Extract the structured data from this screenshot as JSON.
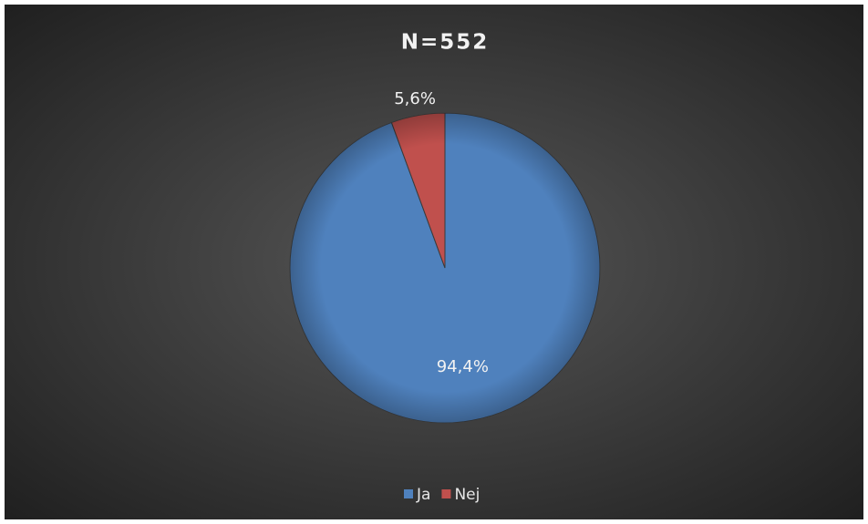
{
  "chart_data": {
    "type": "pie",
    "title": "N=552",
    "categories": [
      "Ja",
      "Nej"
    ],
    "values": [
      94.4,
      5.6
    ],
    "value_labels": [
      "94,4%",
      "5,6%"
    ],
    "colors": [
      "#4f81bd",
      "#c0504d"
    ],
    "legend": "bottom"
  }
}
